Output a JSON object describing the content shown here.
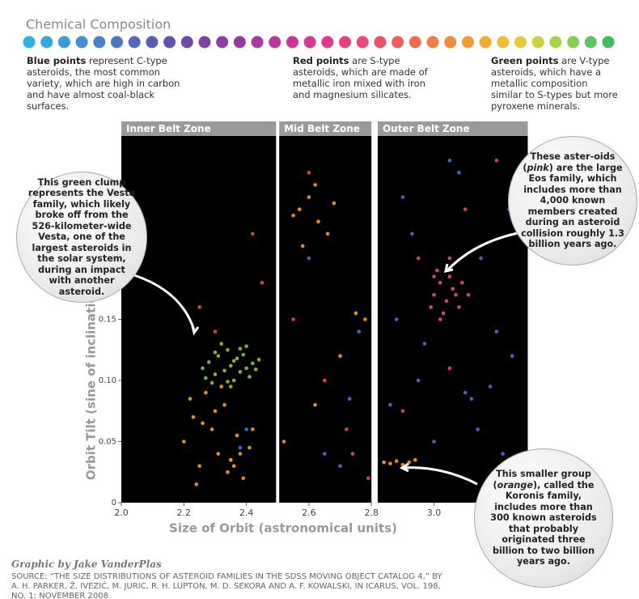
{
  "header": {
    "title": "Chemical Composition",
    "palette": [
      "#2ab3e0",
      "#33a8dc",
      "#3a9dd6",
      "#4190d0",
      "#4783c9",
      "#4d76c2",
      "#5469bb",
      "#5b5db4",
      "#6352ad",
      "#6e49a8",
      "#7c43a5",
      "#8b3ea3",
      "#9b3aa2",
      "#ab37a0",
      "#bb359d",
      "#cb3499",
      "#d93594",
      "#e2398c",
      "#e74082",
      "#ea4877",
      "#ec536b",
      "#ee5f5e",
      "#f06c51",
      "#f27b45",
      "#f48b3b",
      "#f59b33",
      "#f5ac2e",
      "#f2bd2e",
      "#e6cb34",
      "#cad33e",
      "#a8d44a",
      "#84cf57",
      "#5fc65f",
      "#3ebc63"
    ],
    "notes": [
      {
        "bold": "Blue points",
        "text": "represent C-type asteroids, the most common variety, which are high in carbon and have almost coal-black surfaces."
      },
      {
        "bold": "Red points",
        "text": "are S-type asteroids, which are made of metallic iron mixed with iron and magnesium silicates."
      },
      {
        "bold": "Green points",
        "text": "are V-type asteroids, which have a metallic composition similar to S-types but more pyroxene minerals."
      }
    ]
  },
  "chart_data": {
    "type": "scatter",
    "xlabel": "Size of Orbit (astronomical units)",
    "ylabel": "Orbit Tilt (sine of inclination)",
    "xlim": [
      2.0,
      3.3
    ],
    "ylim": [
      0,
      0.3
    ],
    "xticks": [
      {
        "value": 2,
        "label": "2.0"
      },
      2.2,
      2.4,
      2.6,
      2.8,
      {
        "value": 3,
        "label": "3.0"
      }
    ],
    "yticks": [
      0,
      0.05,
      {
        "value": 0.1,
        "label": "0.10"
      },
      0.15
    ],
    "zones": [
      {
        "label": "Inner Belt Zone",
        "range": [
          2.0,
          2.495
        ]
      },
      {
        "label": "Mid Belt Zone",
        "range": [
          2.505,
          2.8
        ]
      },
      {
        "label": "Outer Belt Zone",
        "range": [
          2.82,
          3.3
        ]
      }
    ],
    "series": [
      {
        "color": "#4a72cf",
        "x": [
          2.9,
          2.95,
          3.0,
          3.05,
          3.1,
          3.15,
          3.2,
          3.25,
          2.88,
          2.93,
          3.12,
          3.18,
          3.22,
          2.97,
          3.08,
          3.14,
          2.7,
          2.73,
          2.76,
          2.6,
          2.65,
          2.38,
          2.4,
          2.35,
          3.2,
          3.24,
          2.86,
          3.16
        ],
        "y": [
          0.25,
          0.1,
          0.05,
          0.28,
          0.09,
          0.2,
          0.02,
          0.12,
          0.15,
          0.22,
          0.085,
          0.095,
          0.04,
          0.13,
          0.27,
          0.06,
          0.03,
          0.085,
          0.14,
          0.2,
          0.04,
          0.045,
          0.06,
          0.035,
          0.14,
          0.24,
          0.08,
          0.01
        ]
      },
      {
        "color": "#f5a030",
        "x": [
          2.2,
          2.23,
          2.25,
          2.27,
          2.29,
          2.31,
          2.33,
          2.35,
          2.37,
          2.39,
          2.41,
          2.22,
          2.26,
          2.3,
          2.34,
          2.38,
          2.42,
          2.24,
          2.32,
          2.36,
          2.57,
          2.6,
          2.63,
          2.66,
          2.55,
          2.62,
          2.58,
          2.68,
          2.75,
          2.78,
          2.84,
          2.86,
          2.88,
          2.9,
          2.92,
          2.94,
          2.62,
          2.7,
          2.52
        ],
        "y": [
          0.05,
          0.07,
          0.03,
          0.09,
          0.06,
          0.04,
          0.08,
          0.035,
          0.055,
          0.02,
          0.045,
          0.085,
          0.065,
          0.075,
          0.025,
          0.04,
          0.06,
          0.015,
          0.095,
          0.03,
          0.24,
          0.25,
          0.23,
          0.22,
          0.235,
          0.26,
          0.21,
          0.245,
          0.155,
          0.15,
          0.033,
          0.032,
          0.034,
          0.031,
          0.033,
          0.035,
          0.08,
          0.12,
          0.05
        ]
      },
      {
        "color": "#8cc63f",
        "x": [
          2.26,
          2.28,
          2.3,
          2.31,
          2.33,
          2.34,
          2.35,
          2.36,
          2.37,
          2.38,
          2.39,
          2.4,
          2.41,
          2.42,
          2.29,
          2.32,
          2.35,
          2.38,
          2.43,
          2.36,
          2.3,
          2.27,
          2.44,
          2.34,
          2.4
        ],
        "y": [
          0.11,
          0.115,
          0.105,
          0.12,
          0.108,
          0.125,
          0.112,
          0.1,
          0.118,
          0.107,
          0.121,
          0.11,
          0.103,
          0.114,
          0.098,
          0.13,
          0.095,
          0.126,
          0.109,
          0.116,
          0.123,
          0.102,
          0.117,
          0.099,
          0.128
        ]
      },
      {
        "color": "#e0508a",
        "x": [
          3.0,
          3.02,
          3.04,
          3.06,
          3.08,
          3.01,
          3.03,
          3.05,
          3.07,
          2.99,
          3.09,
          3.02,
          3.05,
          3.11,
          3.0
        ],
        "y": [
          0.17,
          0.18,
          0.165,
          0.175,
          0.16,
          0.19,
          0.155,
          0.185,
          0.17,
          0.16,
          0.18,
          0.15,
          0.2,
          0.17,
          0.185
        ]
      },
      {
        "color": "#e8503a",
        "x": [
          2.3,
          2.45,
          2.55,
          2.65,
          2.72,
          2.79,
          2.95,
          3.1,
          3.2,
          2.25,
          2.6,
          2.74,
          3.05,
          2.42,
          2.9
        ],
        "y": [
          0.14,
          0.18,
          0.15,
          0.1,
          0.06,
          0.02,
          0.2,
          0.24,
          0.28,
          0.16,
          0.27,
          0.04,
          0.11,
          0.22,
          0.075
        ]
      }
    ],
    "annotations": [
      {
        "text": "This green clump represents the Vesta family, which likely broke off from the 526-kilometer-wide Vesta, one of the largest asteroids in the solar system, during an impact with another asteroid."
      },
      {
        "before": "These aster-oids (",
        "em": "pink",
        "after": ") are the large Eos family, which includes more than 4,000 known members created during an asteroid collision roughly 1.3 billion years ago."
      },
      {
        "before": "This smaller group (",
        "em": "orange",
        "after": "), called the Koronis family, includes more than 300 known asteroids that probably originated three billion to two billion years ago."
      }
    ]
  },
  "footer": {
    "credit": "Graphic by Jake VanderPlas",
    "source": "SOURCE: “THE SIZE DISTRIBUTIONS OF ASTEROID FAMILIES IN THE SDSS MOVING OBJECT CATALOG 4,” BY A. H. PARKER, Ž. IVEZIĆ, M. JURIC, R. H. LUPTON, M. D. SEKORA AND A. F. KOWALSKI, IN ICARUS, VOL. 198, NO. 1; NOVEMBER 2008"
  }
}
